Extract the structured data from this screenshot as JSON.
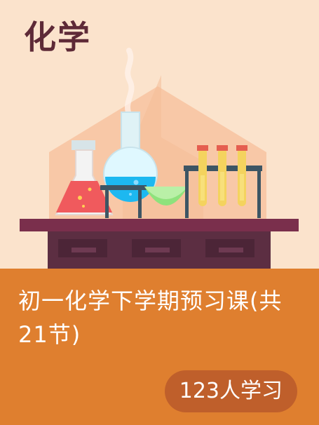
{
  "subject": "化学",
  "course": {
    "title": "初一化学下学期预习课(共21节)"
  },
  "learners": {
    "text": "123人学习"
  },
  "colors": {
    "hero_background": "#fbe3cc",
    "footer_background": "#df7f2f",
    "badge_background": "#bf5f2b",
    "subject_text": "#5e2a37"
  },
  "icons": [
    "laboratory-illustration-icon",
    "conical-flask-icon",
    "round-bottom-flask-icon",
    "evaporating-dish-icon",
    "test-tubes-icon",
    "lab-bench-icon"
  ]
}
